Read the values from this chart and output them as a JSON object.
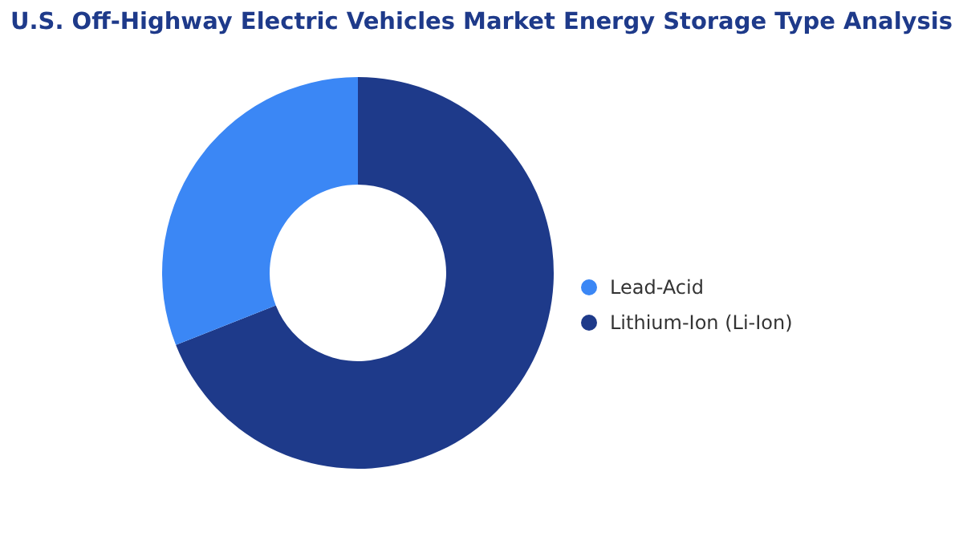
{
  "chart_data": {
    "type": "donut",
    "title": "U.S. Off-Highway Electric Vehicles Market Energy Storage Type Analysis",
    "categories": [
      "Lithium-Ion (Li-Ion)",
      "Lead-Acid"
    ],
    "values": [
      69,
      31
    ],
    "colors": [
      "#1e3a8a",
      "#3b87f5"
    ],
    "legend": "right"
  }
}
